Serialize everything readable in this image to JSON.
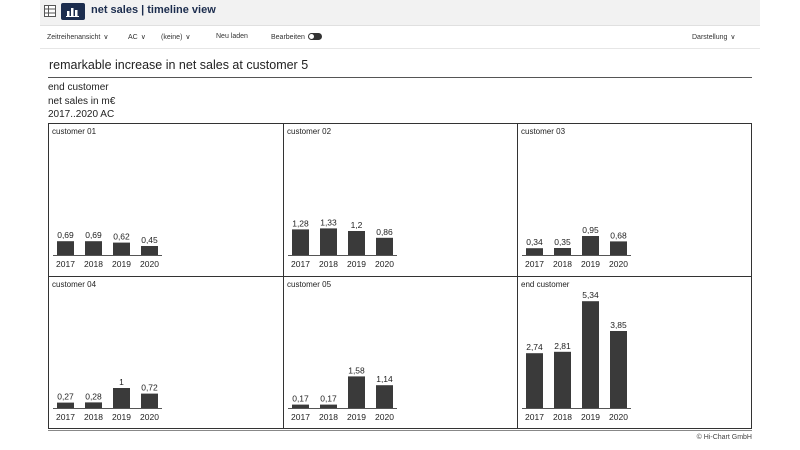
{
  "app": {
    "title": "net sales | timeline view"
  },
  "toolbar": {
    "view_label": "Zeitreihenansicht",
    "scenario_label": "AC",
    "filter_label": "(keine)",
    "reload_label": "Neu laden",
    "edit_label": "Bearbeiten",
    "display_label": "Darstellung"
  },
  "report": {
    "headline": "remarkable increase in net sales at customer 5",
    "entity": "end customer",
    "measure": "net sales in m€",
    "period": "2017..2020 AC",
    "copyright": "© Hi-Chart GmbH"
  },
  "colors": {
    "bar": "#3a3a3a",
    "titlebar_bg": "#f2f2f2",
    "brand": "#1c2d4e"
  },
  "chart_data": [
    {
      "type": "bar",
      "title": "customer 01",
      "categories": [
        "2017",
        "2018",
        "2019",
        "2020"
      ],
      "values": [
        0.69,
        0.69,
        0.62,
        0.45
      ],
      "labels": [
        "0,69",
        "0,69",
        "0,62",
        "0,45"
      ]
    },
    {
      "type": "bar",
      "title": "customer 02",
      "categories": [
        "2017",
        "2018",
        "2019",
        "2020"
      ],
      "values": [
        1.28,
        1.33,
        1.2,
        0.86
      ],
      "labels": [
        "1,28",
        "1,33",
        "1,2",
        "0,86"
      ]
    },
    {
      "type": "bar",
      "title": "customer 03",
      "categories": [
        "2017",
        "2018",
        "2019",
        "2020"
      ],
      "values": [
        0.34,
        0.35,
        0.95,
        0.68
      ],
      "labels": [
        "0,34",
        "0,35",
        "0,95",
        "0,68"
      ]
    },
    {
      "type": "bar",
      "title": "customer 04",
      "categories": [
        "2017",
        "2018",
        "2019",
        "2020"
      ],
      "values": [
        0.27,
        0.28,
        1,
        0.72
      ],
      "labels": [
        "0,27",
        "0,28",
        "1",
        "0,72"
      ]
    },
    {
      "type": "bar",
      "title": "customer 05",
      "categories": [
        "2017",
        "2018",
        "2019",
        "2020"
      ],
      "values": [
        0.17,
        0.17,
        1.58,
        1.14
      ],
      "labels": [
        "0,17",
        "0,17",
        "1,58",
        "1,14"
      ]
    },
    {
      "type": "bar",
      "title": "end customer",
      "categories": [
        "2017",
        "2018",
        "2019",
        "2020"
      ],
      "values": [
        2.74,
        2.81,
        5.34,
        3.85
      ],
      "labels": [
        "2,74",
        "2,81",
        "5,34",
        "3,85"
      ]
    }
  ]
}
